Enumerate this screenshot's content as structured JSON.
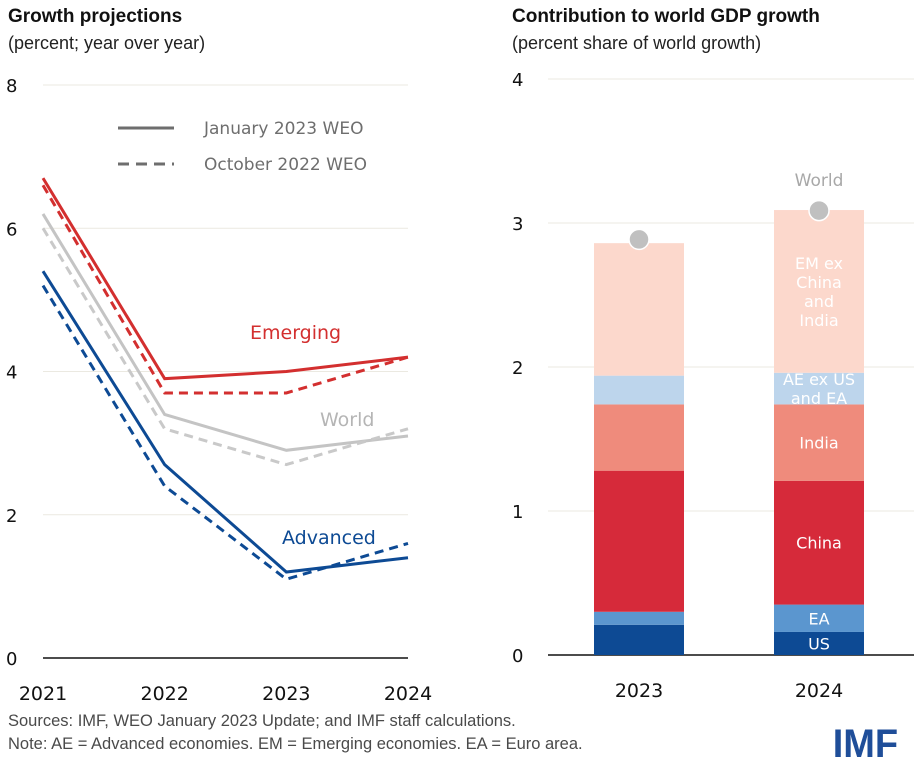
{
  "chart_data": [
    {
      "type": "line",
      "title": "Growth projections",
      "subtitle": "(percent; year over year)",
      "xlabel": "",
      "ylabel": "",
      "x": [
        "2021",
        "2022",
        "2023",
        "2024"
      ],
      "ylim": [
        0,
        8
      ],
      "yticks": [
        "0",
        "2",
        "4",
        "6",
        "8"
      ],
      "grid": true,
      "legend": {
        "placement": "top-right",
        "entries": [
          {
            "label": "January 2023 WEO",
            "style": "solid"
          },
          {
            "label": "October 2022 WEO",
            "style": "dashed"
          }
        ]
      },
      "series": [
        {
          "name": "Emerging",
          "vintage": "January 2023 WEO",
          "style": "solid",
          "color": "#d32f2f",
          "values": [
            6.7,
            3.9,
            4.0,
            4.2
          ]
        },
        {
          "name": "Emerging",
          "vintage": "October 2022 WEO",
          "style": "dashed",
          "color": "#d32f2f",
          "values": [
            6.6,
            3.7,
            3.7,
            4.2
          ]
        },
        {
          "name": "World",
          "vintage": "January 2023 WEO",
          "style": "solid",
          "color": "#c4c4c4",
          "values": [
            6.2,
            3.4,
            2.9,
            3.1
          ]
        },
        {
          "name": "World",
          "vintage": "October 2022 WEO",
          "style": "dashed",
          "color": "#c9c9c9",
          "values": [
            6.0,
            3.2,
            2.7,
            3.2
          ]
        },
        {
          "name": "Advanced",
          "vintage": "January 2023 WEO",
          "style": "solid",
          "color": "#0d4a94",
          "values": [
            5.4,
            2.7,
            1.2,
            1.4
          ]
        },
        {
          "name": "Advanced",
          "vintage": "October 2022 WEO",
          "style": "dashed",
          "color": "#0d4a94",
          "values": [
            5.2,
            2.4,
            1.1,
            1.6
          ]
        }
      ],
      "series_labels": [
        {
          "text": "Emerging",
          "color": "#d32f2f"
        },
        {
          "text": "World",
          "color": "#b5b5b5"
        },
        {
          "text": "Advanced",
          "color": "#0d4a94"
        }
      ]
    },
    {
      "type": "bar",
      "stacked": true,
      "title": "Contribution to world GDP growth",
      "subtitle": "(percent share of world growth)",
      "xlabel": "",
      "ylabel": "",
      "categories": [
        "2023",
        "2024"
      ],
      "ylim": [
        0,
        4
      ],
      "yticks": [
        "0",
        "1",
        "2",
        "3",
        "4"
      ],
      "grid": true,
      "series": [
        {
          "name": "US",
          "color": "#0d4a94",
          "values": [
            0.21,
            0.16
          ]
        },
        {
          "name": "EA",
          "color": "#5b96cf",
          "values": [
            0.09,
            0.19
          ]
        },
        {
          "name": "China",
          "color": "#d62a3a",
          "values": [
            0.98,
            0.86
          ]
        },
        {
          "name": "India",
          "color": "#ef8b7c",
          "values": [
            0.46,
            0.53
          ]
        },
        {
          "name": "AE ex US and EA",
          "color": "#bdd5ec",
          "values": [
            0.2,
            0.22
          ]
        },
        {
          "name": "EM ex China and India",
          "color": "#fcd8cc",
          "values": [
            0.92,
            1.13
          ]
        }
      ],
      "segment_labels_2024": [
        {
          "series": "US",
          "lines": [
            "US"
          ]
        },
        {
          "series": "EA",
          "lines": [
            "EA"
          ]
        },
        {
          "series": "China",
          "lines": [
            "China"
          ]
        },
        {
          "series": "India",
          "lines": [
            "India"
          ]
        },
        {
          "series": "AE ex US and EA",
          "lines": [
            "AE ex US",
            "and EA"
          ]
        },
        {
          "series": "EM ex China and India",
          "lines": [
            "EM ex",
            "China",
            "and",
            "India"
          ]
        }
      ],
      "world_marker": {
        "name": "World",
        "color": "#c0c0c0",
        "values": [
          2.9,
          3.1
        ]
      }
    }
  ],
  "footer": {
    "sources": "Sources: IMF, WEO January 2023 Update; and IMF staff calculations.",
    "note": "Note: AE = Advanced economies.  EM = Emerging economies. EA = Euro area."
  },
  "logo": {
    "text": "IMF",
    "color": "#1f4e99"
  }
}
